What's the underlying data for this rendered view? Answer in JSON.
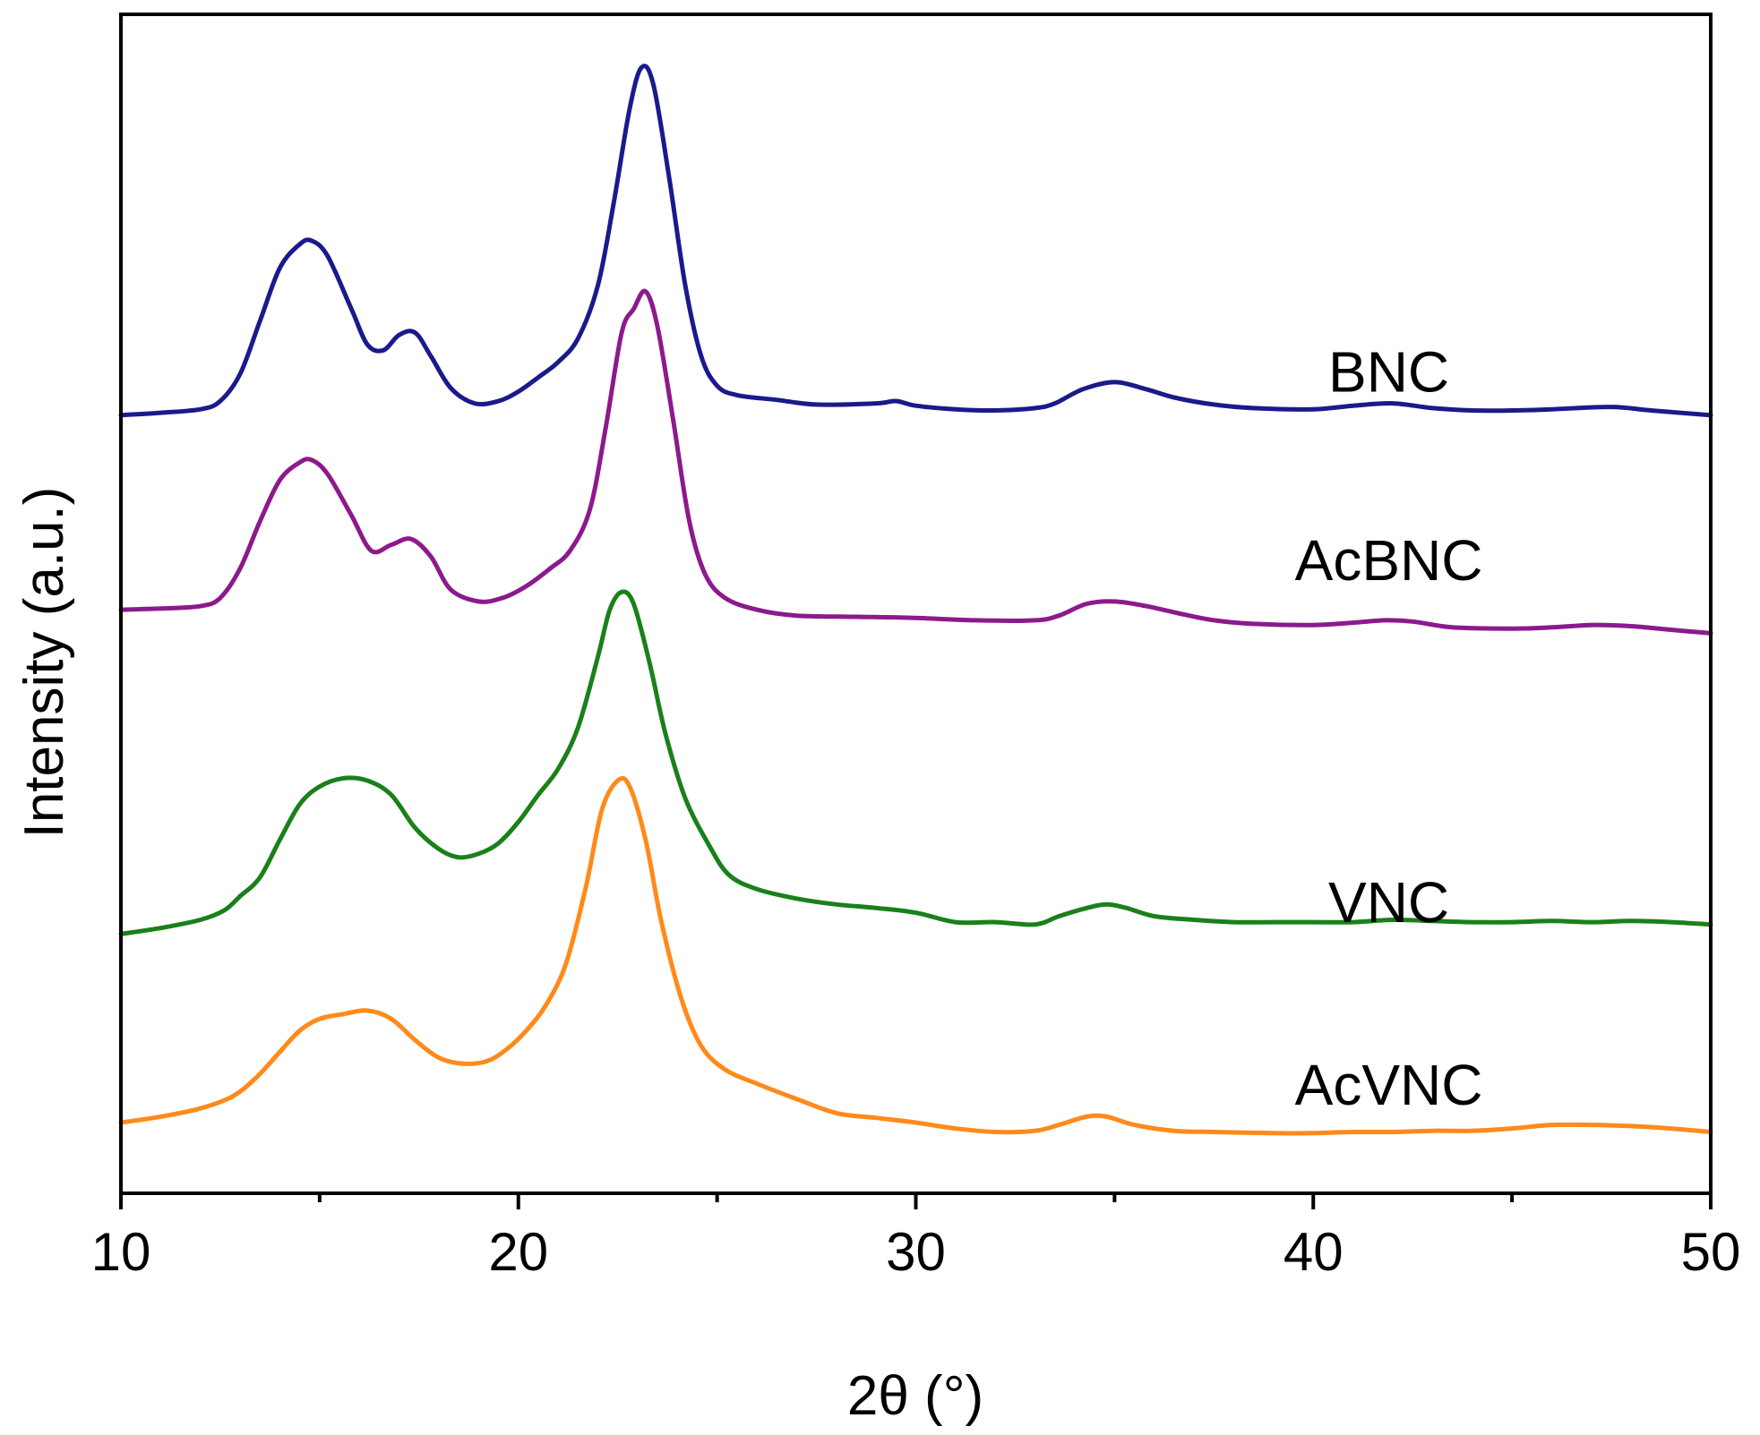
{
  "chart_data": {
    "type": "line",
    "title": "",
    "xlabel": "2θ (°)",
    "ylabel": "Intensity (a.u.)",
    "xlim": [
      10,
      50
    ],
    "ylim": [
      0,
      10
    ],
    "x_ticks": [
      10,
      20,
      30,
      40,
      50
    ],
    "x_tick_labels": [
      "10",
      "20",
      "30",
      "40",
      "50"
    ],
    "grid": false,
    "legend": "inline labels to the right of each curve",
    "series": [
      {
        "name": "BNC",
        "color": "#1a1a8c",
        "label_x": 41.9,
        "label_y": 6.8,
        "points": [
          [
            10,
            6.6
          ],
          [
            11,
            6.62
          ],
          [
            12,
            6.65
          ],
          [
            12.5,
            6.72
          ],
          [
            13,
            6.95
          ],
          [
            13.5,
            7.4
          ],
          [
            14,
            7.85
          ],
          [
            14.5,
            8.05
          ],
          [
            14.8,
            8.08
          ],
          [
            15.2,
            7.95
          ],
          [
            15.8,
            7.5
          ],
          [
            16.2,
            7.2
          ],
          [
            16.6,
            7.15
          ],
          [
            17,
            7.28
          ],
          [
            17.4,
            7.3
          ],
          [
            17.8,
            7.1
          ],
          [
            18.3,
            6.83
          ],
          [
            18.9,
            6.7
          ],
          [
            19.5,
            6.72
          ],
          [
            20,
            6.8
          ],
          [
            20.5,
            6.92
          ],
          [
            21,
            7.05
          ],
          [
            21.5,
            7.25
          ],
          [
            22,
            7.7
          ],
          [
            22.4,
            8.4
          ],
          [
            22.8,
            9.2
          ],
          [
            23.1,
            9.55
          ],
          [
            23.4,
            9.4
          ],
          [
            23.8,
            8.6
          ],
          [
            24.2,
            7.7
          ],
          [
            24.6,
            7.1
          ],
          [
            25,
            6.85
          ],
          [
            25.5,
            6.77
          ],
          [
            26.5,
            6.73
          ],
          [
            27.5,
            6.69
          ],
          [
            29,
            6.7
          ],
          [
            29.5,
            6.72
          ],
          [
            30,
            6.68
          ],
          [
            31,
            6.65
          ],
          [
            32,
            6.64
          ],
          [
            33,
            6.66
          ],
          [
            33.5,
            6.7
          ],
          [
            34.2,
            6.82
          ],
          [
            35,
            6.88
          ],
          [
            35.8,
            6.82
          ],
          [
            36.5,
            6.75
          ],
          [
            37.5,
            6.69
          ],
          [
            38.5,
            6.66
          ],
          [
            40,
            6.65
          ],
          [
            41,
            6.68
          ],
          [
            42,
            6.7
          ],
          [
            43,
            6.66
          ],
          [
            44,
            6.64
          ],
          [
            45,
            6.64
          ],
          [
            46,
            6.65
          ],
          [
            47.5,
            6.67
          ],
          [
            48.5,
            6.64
          ],
          [
            50,
            6.6
          ]
        ]
      },
      {
        "name": "AcBNC",
        "color": "#8c1a8c",
        "label_x": 41.9,
        "label_y": 5.2,
        "points": [
          [
            10,
            4.95
          ],
          [
            11,
            4.96
          ],
          [
            12,
            4.98
          ],
          [
            12.5,
            5.05
          ],
          [
            13,
            5.3
          ],
          [
            13.5,
            5.7
          ],
          [
            14,
            6.05
          ],
          [
            14.5,
            6.2
          ],
          [
            14.8,
            6.22
          ],
          [
            15.2,
            6.1
          ],
          [
            15.8,
            5.75
          ],
          [
            16.3,
            5.45
          ],
          [
            16.8,
            5.5
          ],
          [
            17.3,
            5.55
          ],
          [
            17.8,
            5.4
          ],
          [
            18.3,
            5.12
          ],
          [
            19,
            5.02
          ],
          [
            19.6,
            5.05
          ],
          [
            20.2,
            5.15
          ],
          [
            20.8,
            5.3
          ],
          [
            21.3,
            5.45
          ],
          [
            21.8,
            5.8
          ],
          [
            22.2,
            6.5
          ],
          [
            22.6,
            7.3
          ],
          [
            22.9,
            7.5
          ],
          [
            23.2,
            7.65
          ],
          [
            23.5,
            7.35
          ],
          [
            23.9,
            6.55
          ],
          [
            24.3,
            5.7
          ],
          [
            24.7,
            5.25
          ],
          [
            25.2,
            5.05
          ],
          [
            26,
            4.95
          ],
          [
            27,
            4.9
          ],
          [
            28.5,
            4.89
          ],
          [
            30,
            4.88
          ],
          [
            31.5,
            4.86
          ],
          [
            33,
            4.86
          ],
          [
            33.6,
            4.9
          ],
          [
            34.3,
            5.0
          ],
          [
            35,
            5.02
          ],
          [
            35.8,
            4.98
          ],
          [
            36.6,
            4.92
          ],
          [
            37.5,
            4.86
          ],
          [
            38.5,
            4.83
          ],
          [
            40,
            4.82
          ],
          [
            41,
            4.84
          ],
          [
            41.8,
            4.86
          ],
          [
            42.5,
            4.85
          ],
          [
            43.5,
            4.8
          ],
          [
            45,
            4.79
          ],
          [
            46,
            4.8
          ],
          [
            47,
            4.82
          ],
          [
            48,
            4.81
          ],
          [
            49,
            4.78
          ],
          [
            50,
            4.75
          ]
        ]
      },
      {
        "name": "VNC",
        "color": "#1a801a",
        "label_x": 41.9,
        "label_y": 2.3,
        "points": [
          [
            10,
            2.2
          ],
          [
            11,
            2.25
          ],
          [
            12,
            2.32
          ],
          [
            12.6,
            2.4
          ],
          [
            13,
            2.52
          ],
          [
            13.5,
            2.68
          ],
          [
            14,
            3.0
          ],
          [
            14.5,
            3.3
          ],
          [
            15,
            3.45
          ],
          [
            15.6,
            3.52
          ],
          [
            16.2,
            3.5
          ],
          [
            16.8,
            3.38
          ],
          [
            17.4,
            3.1
          ],
          [
            18,
            2.92
          ],
          [
            18.5,
            2.85
          ],
          [
            19,
            2.88
          ],
          [
            19.5,
            2.97
          ],
          [
            20,
            3.15
          ],
          [
            20.5,
            3.38
          ],
          [
            21,
            3.6
          ],
          [
            21.5,
            3.95
          ],
          [
            22,
            4.55
          ],
          [
            22.3,
            4.95
          ],
          [
            22.6,
            5.1
          ],
          [
            22.9,
            5.0
          ],
          [
            23.3,
            4.5
          ],
          [
            23.7,
            3.9
          ],
          [
            24.2,
            3.35
          ],
          [
            24.8,
            2.95
          ],
          [
            25.3,
            2.7
          ],
          [
            26,
            2.58
          ],
          [
            27,
            2.5
          ],
          [
            28,
            2.45
          ],
          [
            29,
            2.42
          ],
          [
            30,
            2.38
          ],
          [
            31,
            2.3
          ],
          [
            32,
            2.3
          ],
          [
            33,
            2.28
          ],
          [
            33.6,
            2.35
          ],
          [
            34.3,
            2.42
          ],
          [
            34.8,
            2.45
          ],
          [
            35.3,
            2.42
          ],
          [
            36,
            2.35
          ],
          [
            37,
            2.32
          ],
          [
            38,
            2.3
          ],
          [
            39,
            2.3
          ],
          [
            40,
            2.3
          ],
          [
            41,
            2.3
          ],
          [
            42,
            2.32
          ],
          [
            43,
            2.31
          ],
          [
            44,
            2.3
          ],
          [
            45,
            2.3
          ],
          [
            46,
            2.31
          ],
          [
            47,
            2.3
          ],
          [
            48,
            2.31
          ],
          [
            49,
            2.3
          ],
          [
            50,
            2.28
          ]
        ]
      },
      {
        "name": "AcVNC",
        "color": "#ff8a1a",
        "label_x": 41.9,
        "label_y": 0.75,
        "points": [
          [
            10,
            0.6
          ],
          [
            11,
            0.65
          ],
          [
            12,
            0.72
          ],
          [
            12.8,
            0.82
          ],
          [
            13.4,
            0.98
          ],
          [
            14,
            1.2
          ],
          [
            14.5,
            1.38
          ],
          [
            15,
            1.48
          ],
          [
            15.6,
            1.52
          ],
          [
            16.2,
            1.55
          ],
          [
            16.8,
            1.48
          ],
          [
            17.4,
            1.3
          ],
          [
            18,
            1.15
          ],
          [
            18.6,
            1.1
          ],
          [
            19.2,
            1.12
          ],
          [
            19.7,
            1.22
          ],
          [
            20.2,
            1.38
          ],
          [
            20.7,
            1.6
          ],
          [
            21.2,
            1.95
          ],
          [
            21.7,
            2.6
          ],
          [
            22.1,
            3.25
          ],
          [
            22.5,
            3.5
          ],
          [
            22.8,
            3.45
          ],
          [
            23.2,
            3.0
          ],
          [
            23.6,
            2.3
          ],
          [
            24.1,
            1.65
          ],
          [
            24.6,
            1.25
          ],
          [
            25.2,
            1.05
          ],
          [
            26,
            0.93
          ],
          [
            27,
            0.8
          ],
          [
            28,
            0.68
          ],
          [
            29,
            0.64
          ],
          [
            30,
            0.6
          ],
          [
            31,
            0.55
          ],
          [
            32,
            0.52
          ],
          [
            33,
            0.53
          ],
          [
            33.6,
            0.58
          ],
          [
            34.3,
            0.65
          ],
          [
            34.8,
            0.65
          ],
          [
            35.5,
            0.58
          ],
          [
            36.5,
            0.53
          ],
          [
            37.5,
            0.52
          ],
          [
            39,
            0.51
          ],
          [
            40,
            0.51
          ],
          [
            41,
            0.52
          ],
          [
            42,
            0.52
          ],
          [
            43,
            0.53
          ],
          [
            44,
            0.53
          ],
          [
            45,
            0.55
          ],
          [
            46,
            0.58
          ],
          [
            47,
            0.58
          ],
          [
            48,
            0.57
          ],
          [
            49,
            0.55
          ],
          [
            50,
            0.52
          ]
        ]
      }
    ]
  }
}
